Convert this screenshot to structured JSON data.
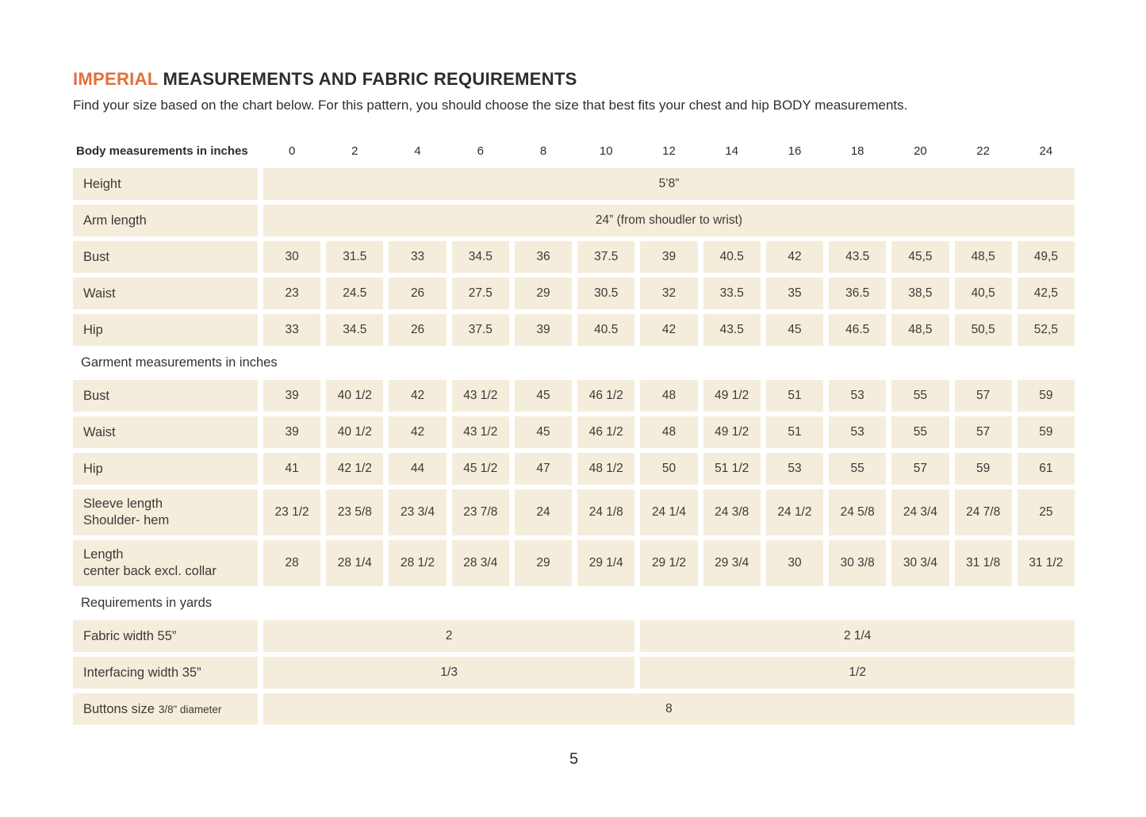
{
  "page": {
    "title_highlight": "IMPERIAL",
    "title_rest": " MEASUREMENTS AND FABRIC REQUIREMENTS",
    "subtitle": "Find your size based on the chart below. For this pattern, you should choose the size that best fits your chest and hip BODY measurements.",
    "page_number": "5"
  },
  "colors": {
    "accent_orange": "#E0703C",
    "cell_cream": "#F5EDDB",
    "text_dark": "#333333"
  },
  "table": {
    "header": {
      "label": "Body measurements in inches",
      "sizes": [
        "0",
        "2",
        "4",
        "6",
        "8",
        "10",
        "12",
        "14",
        "16",
        "18",
        "20",
        "22",
        "24"
      ]
    },
    "sections": [
      {
        "heading": null,
        "rows": [
          {
            "label": "Height",
            "span": "full",
            "value": "5’8”"
          },
          {
            "label": "Arm length",
            "span": "full",
            "value": "24” (from shoudler to wrist)"
          },
          {
            "label": "Bust",
            "values": [
              "30",
              "31.5",
              "33",
              "34.5",
              "36",
              "37.5",
              "39",
              "40.5",
              "42",
              "43.5",
              "45,5",
              "48,5",
              "49,5"
            ]
          },
          {
            "label": "Waist",
            "values": [
              "23",
              "24.5",
              "26",
              "27.5",
              "29",
              "30.5",
              "32",
              "33.5",
              "35",
              "36.5",
              "38,5",
              "40,5",
              "42,5"
            ]
          },
          {
            "label": "Hip",
            "values": [
              "33",
              "34.5",
              "26",
              "37.5",
              "39",
              "40.5",
              "42",
              "43.5",
              "45",
              "46.5",
              "48,5",
              "50,5",
              "52,5"
            ]
          }
        ]
      },
      {
        "heading": "Garment measurements in inches",
        "rows": [
          {
            "label": "Bust",
            "values": [
              "39",
              "40 1/2",
              "42",
              "43 1/2",
              "45",
              "46 1/2",
              "48",
              "49 1/2",
              "51",
              "53",
              "55",
              "57",
              "59"
            ]
          },
          {
            "label": "Waist",
            "values": [
              "39",
              "40 1/2",
              "42",
              "43 1/2",
              "45",
              "46 1/2",
              "48",
              "49 1/2",
              "51",
              "53",
              "55",
              "57",
              "59"
            ]
          },
          {
            "label": "Hip",
            "values": [
              "41",
              "42 1/2",
              "44",
              "45 1/2",
              "47",
              "48 1/2",
              "50",
              "51 1/2",
              "53",
              "55",
              "57",
              "59",
              "61"
            ]
          },
          {
            "label": "Sleeve length",
            "label2": "Shoulder- hem",
            "tall": true,
            "values": [
              "23 1/2",
              "23 5/8",
              "23 3/4",
              "23 7/8",
              "24",
              "24 1/8",
              "24 1/4",
              "24 3/8",
              "24 1/2",
              "24 5/8",
              "24 3/4",
              "24 7/8",
              "25"
            ]
          },
          {
            "label": "Length",
            "label2": "center back excl. collar",
            "tall": true,
            "values": [
              "28",
              "28 1/4",
              "28 1/2",
              "28 3/4",
              "29",
              "29 1/4",
              "29 1/2",
              "29 3/4",
              "30",
              "30 3/8",
              "30 3/4",
              "31 1/8",
              "31 1/2"
            ]
          }
        ]
      },
      {
        "heading": "Requirements in yards",
        "rows": [
          {
            "label": "Fabric width 55”",
            "span": "half",
            "values": [
              "2",
              "2 1/4"
            ]
          },
          {
            "label": "Interfacing width 35”",
            "span": "half",
            "values": [
              "1/3",
              "1/2"
            ]
          },
          {
            "label": "Buttons size",
            "label_small": "3/8” diameter",
            "span": "full",
            "value": "8"
          }
        ]
      }
    ]
  }
}
